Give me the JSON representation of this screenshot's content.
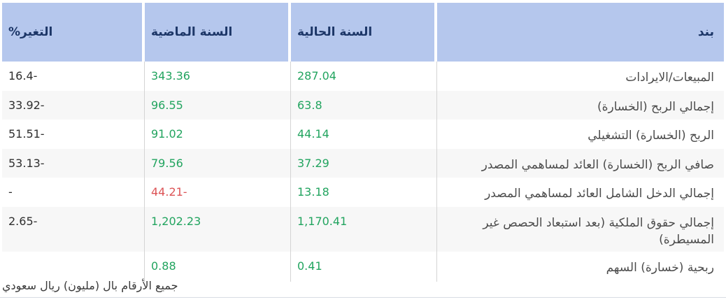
{
  "colors": {
    "header_bg": "#b5c7ed",
    "header_text": "#1c3667",
    "positive_value": "#22a45f",
    "negative_value": "#dc5356",
    "row_alt_bg": "#f7f7f7"
  },
  "table": {
    "headers": {
      "item": "بند",
      "current_year": "السنة الحالية",
      "previous_year": "السنة الماضية",
      "change_percent": "التغير%"
    },
    "rows": [
      {
        "item": "المبيعات/الايرادات",
        "current": "287.04",
        "current_class": "positive",
        "previous": "343.36",
        "previous_class": "positive",
        "change": "16.4-"
      },
      {
        "item": "إجمالي الربح (الخسارة)",
        "current": "63.8",
        "current_class": "positive",
        "previous": "96.55",
        "previous_class": "positive",
        "change": "33.92-"
      },
      {
        "item": "الربح (الخسارة) التشغيلي",
        "current": "44.14",
        "current_class": "positive",
        "previous": "91.02",
        "previous_class": "positive",
        "change": "51.51-"
      },
      {
        "item": "صافي الربح (الخسارة) العائد لمساهمي المصدر",
        "current": "37.29",
        "current_class": "positive",
        "previous": "79.56",
        "previous_class": "positive",
        "change": "53.13-"
      },
      {
        "item": "إجمالي الدخل الشامل العائد لمساهمي المصدر",
        "current": "13.18",
        "current_class": "positive",
        "previous": "44.21-",
        "previous_class": "negative",
        "change": "-"
      },
      {
        "item": "إجمالي حقوق الملكية (بعد استبعاد الحصص غير المسيطرة)",
        "current": "1,170.41",
        "current_class": "positive",
        "previous": "1,202.23",
        "previous_class": "positive",
        "change": "2.65-"
      },
      {
        "item": "ربحية (خسارة) السهم",
        "current": "0.41",
        "current_class": "positive",
        "previous": "0.88",
        "previous_class": "positive",
        "change": ""
      }
    ],
    "footnote": "جميع الأرقام بال (مليون) ريال سعودي"
  }
}
